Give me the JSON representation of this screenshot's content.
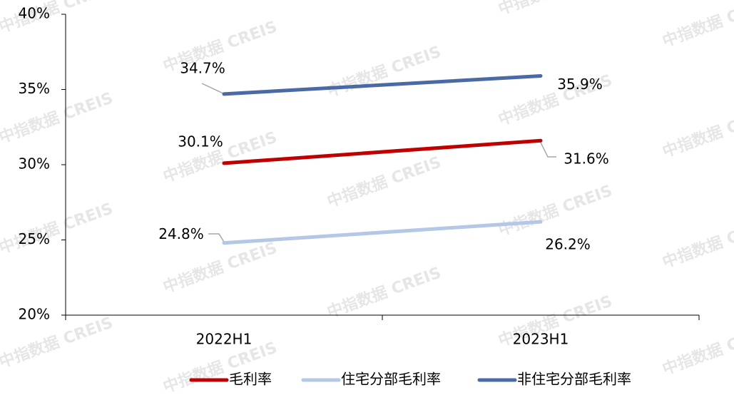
{
  "chart_data": {
    "type": "line",
    "categories": [
      "2022H1",
      "2023H1"
    ],
    "series": [
      {
        "name": "毛利率",
        "color": "#c00000",
        "values": [
          30.1,
          31.6
        ],
        "value_labels": [
          "30.1%",
          "31.6%"
        ]
      },
      {
        "name": "住宅分部毛利率",
        "color": "#b4c7e7",
        "values": [
          24.8,
          26.2
        ],
        "value_labels": [
          "24.8%",
          "26.2%"
        ]
      },
      {
        "name": "非住宅分部毛利率",
        "color": "#4a6aa5",
        "values": [
          34.7,
          35.9
        ],
        "value_labels": [
          "34.7%",
          "35.9%"
        ]
      }
    ],
    "ylim": [
      20,
      40
    ],
    "yticks": [
      {
        "value": 20,
        "label": "20%"
      },
      {
        "value": 25,
        "label": "25%"
      },
      {
        "value": 30,
        "label": "30%"
      },
      {
        "value": 35,
        "label": "35%"
      },
      {
        "value": 40,
        "label": "40%"
      }
    ],
    "legend": "bottom",
    "watermark": "中指数据 CREIS"
  }
}
